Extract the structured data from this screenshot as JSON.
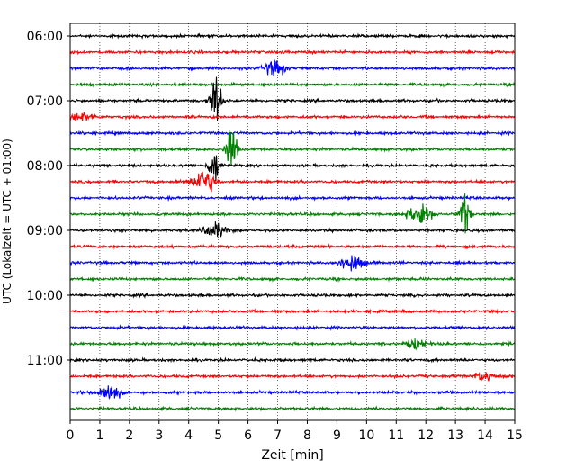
{
  "chart_data": {
    "type": "line",
    "title": "",
    "xlabel": "Zeit  [min]",
    "ylabel": "UTC (Lokalzeit = UTC + 01:00)",
    "xlim": [
      0,
      15
    ],
    "x_ticks": [
      "0",
      "1",
      "2",
      "3",
      "4",
      "5",
      "6",
      "7",
      "8",
      "9",
      "10",
      "11",
      "12",
      "13",
      "14",
      "15"
    ],
    "y_tick_labels": [
      "06:00",
      "07:00",
      "08:00",
      "09:00",
      "10:00",
      "11:00"
    ],
    "grid": "vertical dotted",
    "colors": [
      "#000000",
      "#ff0000",
      "#0000ff",
      "#008000"
    ],
    "trace_start_times": [
      "06:00",
      "06:15",
      "06:30",
      "06:45",
      "07:00",
      "07:15",
      "07:30",
      "07:45",
      "08:00",
      "08:15",
      "08:30",
      "08:45",
      "09:00",
      "09:15",
      "09:30",
      "09:45",
      "10:00",
      "10:15",
      "10:30",
      "10:45",
      "11:00",
      "11:15",
      "11:30",
      "11:45"
    ],
    "notable_events": [
      {
        "trace": "06:30",
        "x_min": 6.9,
        "amplitude": 0.5
      },
      {
        "trace": "07:00",
        "x_min": 4.9,
        "amplitude": 2.0
      },
      {
        "trace": "07:15",
        "x_min": 0.4,
        "amplitude": 0.3
      },
      {
        "trace": "07:45",
        "x_min": 5.45,
        "amplitude": 1.6
      },
      {
        "trace": "08:00",
        "x_min": 4.85,
        "amplitude": 1.2
      },
      {
        "trace": "08:15",
        "x_min": 4.5,
        "amplitude": 0.9
      },
      {
        "trace": "08:45",
        "x_min": 11.8,
        "amplitude": 0.8
      },
      {
        "trace": "08:45",
        "x_min": 13.3,
        "amplitude": 1.4
      },
      {
        "trace": "09:00",
        "x_min": 4.9,
        "amplitude": 0.5
      },
      {
        "trace": "09:30",
        "x_min": 9.5,
        "amplitude": 0.6
      },
      {
        "trace": "10:45",
        "x_min": 11.7,
        "amplitude": 0.3
      },
      {
        "trace": "11:15",
        "x_min": 14.0,
        "amplitude": 0.3
      },
      {
        "trace": "11:30",
        "x_min": 1.3,
        "amplitude": 0.6
      }
    ]
  }
}
